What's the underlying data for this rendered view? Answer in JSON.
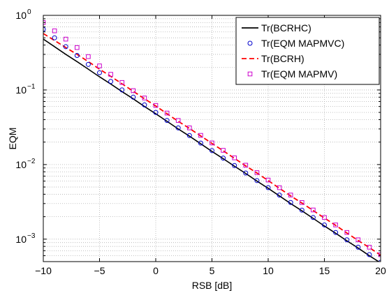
{
  "chart_data": {
    "type": "line",
    "xlabel": "RSB [dB]",
    "ylabel": "EQM",
    "xlim": [
      -10,
      20
    ],
    "ylim": [
      0.0005,
      1
    ],
    "yscale": "log",
    "grid": true,
    "legend_position": "top-right",
    "x_ticks": [
      {
        "value": -10,
        "label": "−10"
      },
      {
        "value": -5,
        "label": "−5"
      },
      {
        "value": 0,
        "label": "0"
      },
      {
        "value": 5,
        "label": "5"
      },
      {
        "value": 10,
        "label": "10"
      },
      {
        "value": 15,
        "label": "15"
      },
      {
        "value": 20,
        "label": "20"
      }
    ],
    "y_ticks": [
      {
        "value": 1,
        "base": "10",
        "exp": "0"
      },
      {
        "value": 0.1,
        "base": "10",
        "exp": "−1"
      },
      {
        "value": 0.01,
        "base": "10",
        "exp": "−2"
      },
      {
        "value": 0.001,
        "base": "10",
        "exp": "−3"
      }
    ],
    "x": [
      -10,
      -9,
      -8,
      -7,
      -6,
      -5,
      -4,
      -3,
      -2,
      -1,
      0,
      1,
      2,
      3,
      4,
      5,
      6,
      7,
      8,
      9,
      10,
      11,
      12,
      13,
      14,
      15,
      16,
      17,
      18,
      19,
      20
    ],
    "series": [
      {
        "name": "Tr(BCRHC)",
        "style": "line",
        "dash": "solid",
        "color": "#000000",
        "values": [
          0.48,
          0.38,
          0.3,
          0.24,
          0.19,
          0.15,
          0.12,
          0.095,
          0.076,
          0.06,
          0.048,
          0.038,
          0.03,
          0.024,
          0.019,
          0.015,
          0.012,
          0.0095,
          0.0076,
          0.006,
          0.0048,
          0.0038,
          0.003,
          0.0024,
          0.0019,
          0.0015,
          0.0012,
          0.00095,
          0.00076,
          0.0006,
          0.00048
        ]
      },
      {
        "name": "Tr(EQM MAPMVC)",
        "style": "marker",
        "marker": "circle",
        "color": "#0000cc",
        "values": [
          0.65,
          0.5,
          0.38,
          0.29,
          0.22,
          0.17,
          0.13,
          0.1,
          0.08,
          0.063,
          0.05,
          0.039,
          0.031,
          0.0245,
          0.0194,
          0.0154,
          0.0122,
          0.0097,
          0.0077,
          0.0061,
          0.0049,
          0.0039,
          0.0031,
          0.00245,
          0.00195,
          0.00155,
          0.00123,
          0.00098,
          0.00078,
          0.00062,
          0.00049
        ]
      },
      {
        "name": "Tr(BCRH)",
        "style": "line",
        "dash": "dashed",
        "color": "#ff0000",
        "values": [
          0.57,
          0.46,
          0.37,
          0.3,
          0.24,
          0.19,
          0.152,
          0.121,
          0.096,
          0.076,
          0.061,
          0.048,
          0.038,
          0.0305,
          0.0242,
          0.0192,
          0.0153,
          0.0121,
          0.0096,
          0.0077,
          0.0061,
          0.0048,
          0.0038,
          0.00305,
          0.00242,
          0.00192,
          0.00153,
          0.00121,
          0.00096,
          0.00077,
          0.00061
        ]
      },
      {
        "name": "Tr(EQM MAPMV)",
        "style": "marker",
        "marker": "square",
        "color": "#cc00cc",
        "values": [
          0.8,
          0.62,
          0.48,
          0.37,
          0.28,
          0.21,
          0.162,
          0.126,
          0.098,
          0.078,
          0.062,
          0.049,
          0.039,
          0.031,
          0.0246,
          0.0195,
          0.0155,
          0.0123,
          0.0098,
          0.0078,
          0.0062,
          0.0049,
          0.0039,
          0.0031,
          0.00246,
          0.00195,
          0.00155,
          0.00123,
          0.00098,
          0.00078,
          0.00062
        ]
      }
    ]
  }
}
